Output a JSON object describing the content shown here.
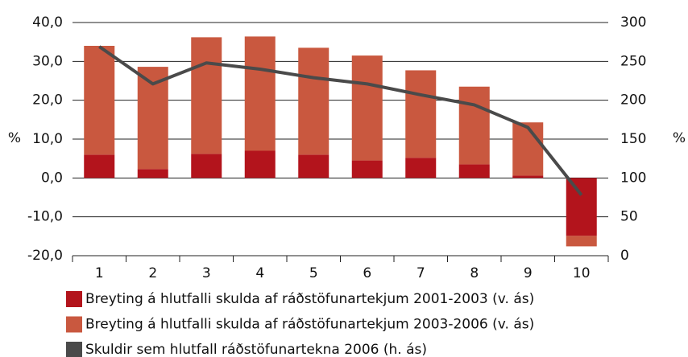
{
  "chart_data": {
    "type": "bar-line",
    "categories": [
      "1",
      "2",
      "3",
      "4",
      "5",
      "6",
      "7",
      "8",
      "9",
      "10"
    ],
    "series": [
      {
        "name": "Breyting á hlutfalli skulda af ráðstöfunartekjum 2001-2003 (v. ás)",
        "color": "#b3141c",
        "type": "bar",
        "axis": "y",
        "values": [
          6,
          2.3,
          6.2,
          7,
          6,
          4.5,
          5.2,
          3.5,
          0.6,
          -14.9
        ]
      },
      {
        "name": "Breyting á hlutfalli skulda af ráðstöfunartekjum 2003-2006 (v. ás)",
        "color": "#c9583f",
        "type": "bar",
        "axis": "y",
        "values": [
          28,
          26.3,
          30,
          29.4,
          27.5,
          27,
          22.5,
          20,
          13.7,
          -2.7
        ]
      },
      {
        "name": "Skuldir sem hlutfall ráðstöfunartekna 2006 (h. ás)",
        "color": "#4a4a4a",
        "type": "line",
        "axis": "y2",
        "values": [
          269,
          221,
          248,
          240,
          229,
          221,
          207,
          194,
          165,
          78
        ]
      }
    ],
    "ylabel": "%",
    "y2label": "%",
    "ylim": [
      -20,
      40
    ],
    "yticks": [
      {
        "value": -20,
        "label": "-20,0"
      },
      {
        "value": -10,
        "label": "-10,0"
      },
      {
        "value": 0,
        "label": "0,0"
      },
      {
        "value": 10,
        "label": "10,0"
      },
      {
        "value": 20,
        "label": "20,0"
      },
      {
        "value": 30,
        "label": "30,0"
      },
      {
        "value": 40,
        "label": "40,0"
      }
    ],
    "y2lim": [
      0,
      300
    ],
    "y2ticks": [
      0,
      50,
      100,
      150,
      200,
      250,
      300
    ],
    "grid": true
  }
}
